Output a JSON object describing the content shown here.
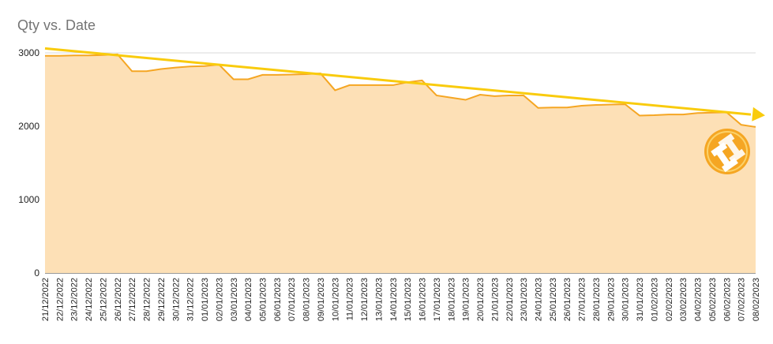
{
  "chart_data": {
    "type": "area",
    "title": "Qty vs. Date",
    "xlabel": "",
    "ylabel": "",
    "ylim": [
      0,
      3000
    ],
    "yticks": [
      "0",
      "1000",
      "2000",
      "3000"
    ],
    "grid": true,
    "legend": "none",
    "x": [
      "21/12/2022",
      "22/12/2022",
      "23/12/2022",
      "24/12/2022",
      "25/12/2022",
      "26/12/2022",
      "27/12/2022",
      "28/12/2022",
      "29/12/2022",
      "30/12/2022",
      "31/12/2022",
      "01/01/2023",
      "02/01/2023",
      "03/01/2023",
      "04/01/2023",
      "05/01/2023",
      "06/01/2023",
      "07/01/2023",
      "08/01/2023",
      "09/01/2023",
      "10/01/2023",
      "11/01/2023",
      "12/01/2023",
      "13/01/2023",
      "14/01/2023",
      "15/01/2023",
      "16/01/2023",
      "17/01/2023",
      "18/01/2023",
      "19/01/2023",
      "20/01/2023",
      "21/01/2023",
      "22/01/2023",
      "23/01/2023",
      "24/01/2023",
      "25/01/2023",
      "26/01/2023",
      "27/01/2023",
      "28/01/2023",
      "29/01/2023",
      "30/01/2023",
      "31/01/2023",
      "01/02/2023",
      "02/02/2023",
      "03/02/2023",
      "04/02/2023",
      "05/02/2023",
      "06/02/2023",
      "07/02/2023",
      "08/02/2023"
    ],
    "series": [
      {
        "values": [
          2960,
          2960,
          2965,
          2965,
          2970,
          2980,
          2750,
          2750,
          2780,
          2800,
          2815,
          2820,
          2840,
          2640,
          2640,
          2700,
          2700,
          2705,
          2710,
          2720,
          2490,
          2560,
          2560,
          2560,
          2560,
          2600,
          2625,
          2420,
          2390,
          2360,
          2430,
          2410,
          2420,
          2420,
          2250,
          2255,
          2255,
          2280,
          2290,
          2295,
          2300,
          2145,
          2150,
          2160,
          2160,
          2180,
          2185,
          2190,
          2020,
          1990
        ],
        "color": "#f5a623",
        "fill": "#fde0b6"
      }
    ],
    "trendline": {
      "start": 3060,
      "end": 2160,
      "color": "#f9cb0d"
    }
  }
}
